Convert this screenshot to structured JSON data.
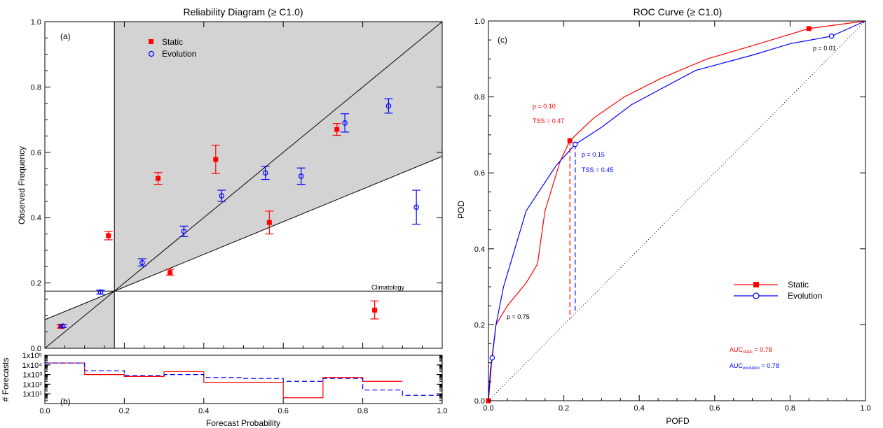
{
  "chart_data": [
    {
      "type": "scatter",
      "panel": "reliability",
      "title": "Reliability Diagram (≥ C1.0)",
      "xlabel": "",
      "ylabel": "Observed Frequency",
      "xlim": [
        0,
        1
      ],
      "ylim": [
        0,
        1
      ],
      "xticks": [
        "0.0",
        "0.2",
        "0.4",
        "0.6",
        "0.8",
        "1.0"
      ],
      "yticks": [
        "0.0",
        "0.2",
        "0.4",
        "0.6",
        "0.8",
        "1.0"
      ],
      "panel_label": "(a)",
      "climatology": 0.175,
      "climatology_label": "Climatology",
      "legend": [
        "Static",
        "Evolution"
      ],
      "series": [
        {
          "name": "Static",
          "color": "#ff0000",
          "marker": "square",
          "points": [
            [
              0.04,
              0.067,
              0.062,
              0.072
            ],
            [
              0.16,
              0.345,
              0.332,
              0.358
            ],
            [
              0.285,
              0.52,
              0.502,
              0.538
            ],
            [
              0.315,
              0.232,
              0.224,
              0.242
            ],
            [
              0.43,
              0.578,
              0.535,
              0.622
            ],
            [
              0.565,
              0.385,
              0.35,
              0.42
            ],
            [
              0.735,
              0.67,
              0.652,
              0.688
            ],
            [
              0.83,
              0.117,
              0.09,
              0.145
            ]
          ]
        },
        {
          "name": "Evolution",
          "color": "#0000ff",
          "marker": "circle",
          "points": [
            [
              0.045,
              0.068,
              0.064,
              0.072
            ],
            [
              0.14,
              0.172,
              0.166,
              0.178
            ],
            [
              0.245,
              0.262,
              0.252,
              0.274
            ],
            [
              0.35,
              0.358,
              0.342,
              0.374
            ],
            [
              0.445,
              0.467,
              0.45,
              0.484
            ],
            [
              0.555,
              0.537,
              0.517,
              0.557
            ],
            [
              0.645,
              0.527,
              0.502,
              0.552
            ],
            [
              0.755,
              0.69,
              0.662,
              0.718
            ],
            [
              0.865,
              0.742,
              0.72,
              0.764
            ],
            [
              0.935,
              0.432,
              0.38,
              0.484
            ]
          ]
        }
      ]
    },
    {
      "type": "bar",
      "panel": "histogram",
      "xlabel": "Forecast Probability",
      "ylabel": "# Forecasts",
      "panel_label": "(b)",
      "yticks": [
        "1x10¹",
        "1x10²",
        "1x10³",
        "1x10⁴",
        "1x10⁵"
      ],
      "xticks": [
        "0.0",
        "0.2",
        "0.4",
        "0.6",
        "0.8",
        "1.0"
      ],
      "bin_edges": [
        0,
        0.1,
        0.2,
        0.3,
        0.4,
        0.5,
        0.6,
        0.7,
        0.8,
        0.9,
        1.0
      ],
      "series": [
        {
          "name": "Static",
          "color": "#ff0000",
          "style": "solid",
          "log_counts": [
            4.2,
            3.0,
            2.8,
            3.3,
            2.2,
            2.2,
            0.6,
            2.7,
            2.3,
            null
          ]
        },
        {
          "name": "Evolution",
          "color": "#0000ff",
          "style": "dashed",
          "log_counts": [
            4.2,
            3.4,
            2.9,
            3.0,
            2.7,
            2.6,
            2.3,
            2.6,
            1.4,
            0.85
          ]
        }
      ]
    },
    {
      "type": "line",
      "panel": "roc",
      "title": "ROC Curve (≥ C1.0)",
      "xlabel": "POFD",
      "ylabel": "POD",
      "xlim": [
        0,
        1
      ],
      "ylim": [
        0,
        1
      ],
      "xticks": [
        "0.0",
        "0.2",
        "0.4",
        "0.6",
        "0.8",
        "1.0"
      ],
      "yticks": [
        "0.0",
        "0.2",
        "0.4",
        "0.6",
        "0.8",
        "1.0"
      ],
      "panel_label": "(c)",
      "legend": [
        "Static",
        "Evolution"
      ],
      "series": [
        {
          "name": "Static",
          "color": "#ff0000",
          "x": [
            0,
            0.01,
            0.02,
            0.05,
            0.1,
            0.13,
            0.15,
            0.19,
            0.216,
            0.28,
            0.36,
            0.46,
            0.58,
            0.7,
            0.85,
            1.0
          ],
          "y": [
            0,
            0.12,
            0.2,
            0.25,
            0.31,
            0.36,
            0.5,
            0.63,
            0.685,
            0.745,
            0.8,
            0.85,
            0.9,
            0.935,
            0.98,
            1.0
          ]
        },
        {
          "name": "Evolution",
          "color": "#0000ff",
          "x": [
            0,
            0.005,
            0.01,
            0.02,
            0.04,
            0.07,
            0.1,
            0.14,
            0.18,
            0.23,
            0.3,
            0.38,
            0.55,
            0.7,
            0.8,
            0.91,
            1.0
          ],
          "y": [
            0,
            0.08,
            0.113,
            0.2,
            0.3,
            0.4,
            0.5,
            0.56,
            0.62,
            0.675,
            0.72,
            0.78,
            0.87,
            0.91,
            0.94,
            0.96,
            1.0
          ]
        }
      ],
      "annotations": {
        "p_static": "p = 0.10",
        "tss_static": "TSS = 0.47",
        "p_evolution": "p = 0.15",
        "tss_evolution": "TSS = 0.45",
        "p_low": "p = 0.75",
        "p_high": "p = 0.01",
        "auc_static": {
          "prefix": "AUC",
          "sub": "static",
          "value": " = 0.78"
        },
        "auc_evolution": {
          "prefix": "AUC",
          "sub": "evolution",
          "value": " = 0.78"
        }
      },
      "markers": {
        "static_opt": [
          0.216,
          0.685
        ],
        "evolution_opt": [
          0.23,
          0.675
        ],
        "static_end": [
          0.85,
          0.98
        ],
        "evolution_end": [
          0.91,
          0.96
        ],
        "origin": [
          0.0,
          0.0
        ],
        "evolution_low": [
          0.01,
          0.113
        ]
      }
    }
  ]
}
